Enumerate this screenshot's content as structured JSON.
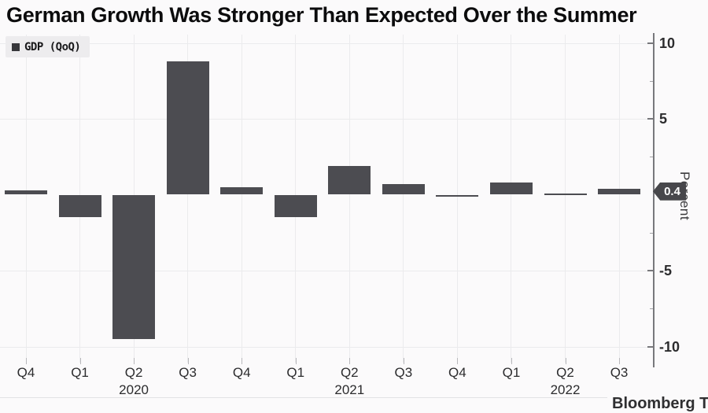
{
  "title": "German Growth Was Stronger Than Expected Over the Summer",
  "legend": {
    "label": "GDP (QoQ)"
  },
  "axis": {
    "unit_label": "Percent",
    "callout_label": "0.4"
  },
  "watermark": "Bloomberg T",
  "colors": {
    "bar": "#4c4c51",
    "callout_bg": "#47474b",
    "legend_bg": "#edecee",
    "grid": "#ebebed",
    "axis": "#78787c"
  },
  "chart_data": {
    "type": "bar",
    "title": "German Growth Was Stronger Than Expected Over the Summer",
    "legend": "GDP (QoQ)",
    "ylabel": "Percent",
    "xlabel": "",
    "categories": [
      "Q4",
      "Q1",
      "Q2",
      "Q3",
      "Q4",
      "Q1",
      "Q2",
      "Q3",
      "Q4",
      "Q1",
      "Q2",
      "Q3"
    ],
    "year_markers": [
      {
        "index": 2,
        "label": "2020"
      },
      {
        "index": 6,
        "label": "2021"
      },
      {
        "index": 10,
        "label": "2022"
      }
    ],
    "values": [
      0.3,
      -1.5,
      -9.5,
      8.8,
      0.5,
      -1.5,
      1.9,
      0.7,
      0.0,
      0.8,
      0.1,
      0.4
    ],
    "ylim": [
      -11.5,
      10.5
    ],
    "yticks_major": [
      10,
      5,
      -5,
      -10
    ],
    "yticks_minor": [
      7.5,
      2.5,
      -2.5,
      -7.5
    ],
    "grid": true,
    "legend_position": "top-left",
    "bar_color": "#4c4c51",
    "callout": {
      "value": 0.4,
      "label": "0.4"
    }
  }
}
